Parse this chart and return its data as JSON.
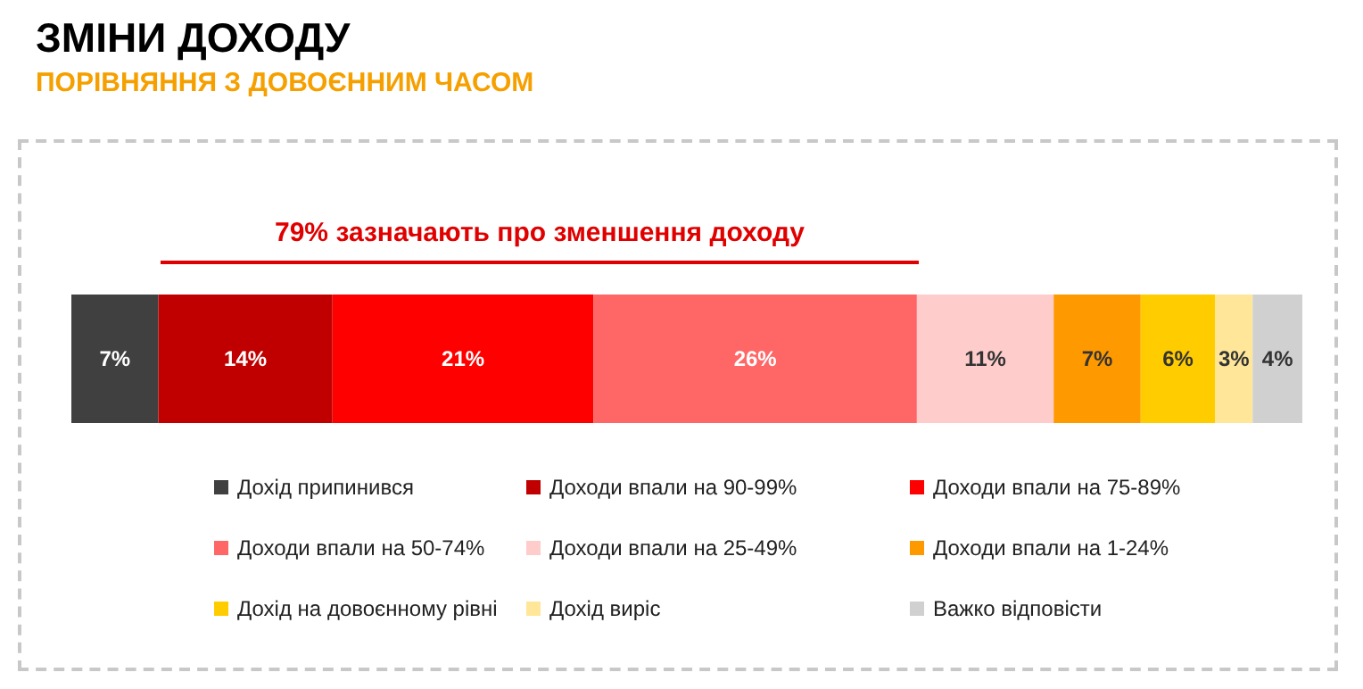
{
  "chart_data": {
    "type": "bar",
    "orientation": "horizontal",
    "stacked": true,
    "title": "ЗМІНИ ДОХОДУ",
    "subtitle": "ПОРІВНЯННЯ З ДОВОЄННИМ ЧАСОМ",
    "annotations": [
      "79% зазначають про зменшення доходу"
    ],
    "categories": [
      null
    ],
    "legend": "bottom",
    "series": [
      {
        "name": "Дохід припинився",
        "color": "#404040",
        "values": [
          7
        ],
        "value_labels": [
          "7%"
        ]
      },
      {
        "name": "Доходи впали на 90-99%",
        "color": "#c00000",
        "values": [
          14
        ],
        "value_labels": [
          "14%"
        ]
      },
      {
        "name": "Доходи впали на 75-89%",
        "color": "#ff0000",
        "values": [
          21
        ],
        "value_labels": [
          "21%"
        ]
      },
      {
        "name": "Доходи впали на 50-74%",
        "color": "#ff6666",
        "values": [
          26
        ],
        "value_labels": [
          "26%"
        ]
      },
      {
        "name": "Доходи впали на 25-49%",
        "color": "#ffcccc",
        "values": [
          11
        ],
        "value_labels": [
          "11%"
        ]
      },
      {
        "name": "Доходи впали на 1-24%",
        "color": "#ff9900",
        "values": [
          7
        ],
        "value_labels": [
          "7%"
        ]
      },
      {
        "name": "Дохід на довоєнному рівні",
        "color": "#ffcc00",
        "values": [
          6
        ],
        "value_labels": [
          "6%"
        ]
      },
      {
        "name": "Дохід виріс",
        "color": "#ffe699",
        "values": [
          3
        ],
        "value_labels": [
          "3%"
        ]
      },
      {
        "name": "Важко відповісти",
        "color": "#d0d0d0",
        "values": [
          4
        ],
        "value_labels": [
          "4%"
        ]
      }
    ]
  }
}
